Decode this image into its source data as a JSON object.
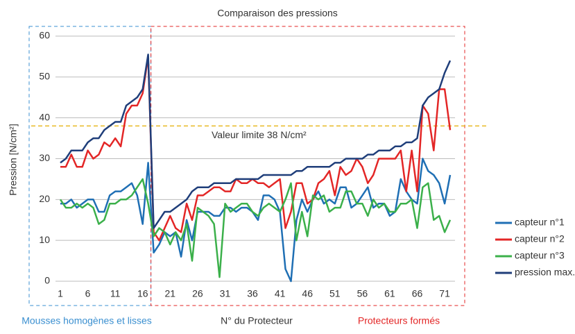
{
  "chart_data": {
    "type": "line",
    "title": "Comparaison des pressions",
    "y_label": "Pression [N/cm²]",
    "x_label": "N° du Protecteur",
    "x": [
      1,
      2,
      3,
      4,
      5,
      6,
      7,
      8,
      9,
      10,
      11,
      12,
      13,
      14,
      15,
      16,
      17,
      18,
      19,
      20,
      21,
      22,
      23,
      24,
      25,
      26,
      27,
      28,
      29,
      30,
      31,
      32,
      33,
      34,
      35,
      36,
      37,
      38,
      39,
      40,
      41,
      42,
      43,
      44,
      45,
      46,
      47,
      48,
      49,
      50,
      51,
      52,
      53,
      54,
      55,
      56,
      57,
      58,
      59,
      60,
      61,
      62,
      63,
      64,
      65,
      66,
      67,
      68,
      69,
      70,
      71,
      72
    ],
    "series": [
      {
        "name": "capteur n°1",
        "color": "#1f6fb4",
        "values": [
          19,
          19,
          20,
          18,
          19,
          20,
          20,
          17,
          17,
          21,
          22,
          22,
          23,
          24,
          21,
          14,
          29,
          7,
          9,
          12,
          11,
          12,
          6,
          15,
          10,
          17,
          17,
          17,
          16,
          16,
          18,
          18,
          17,
          18,
          18,
          17,
          15,
          21,
          21,
          20,
          17,
          3,
          0,
          15,
          20,
          17,
          20,
          22,
          19,
          20,
          19,
          23,
          23,
          18,
          19,
          21,
          23,
          18,
          19,
          19,
          16,
          17,
          25,
          22,
          20,
          19,
          30,
          27,
          26,
          24,
          19,
          26
        ]
      },
      {
        "name": "capteur n°2",
        "color": "#e32626",
        "values": [
          28,
          28,
          31,
          28,
          28,
          32,
          30,
          31,
          34,
          33,
          35,
          33,
          41,
          43,
          43,
          46,
          55,
          12,
          10,
          13,
          16,
          13,
          12,
          19,
          15,
          21,
          21,
          22,
          23,
          23,
          22,
          22,
          25,
          24,
          24,
          25,
          24,
          24,
          23,
          24,
          25,
          13,
          17,
          24,
          24,
          19,
          20,
          24,
          25,
          27,
          21,
          28,
          26,
          27,
          30,
          28,
          24,
          26,
          30,
          30,
          30,
          30,
          32,
          22,
          32,
          22,
          43,
          41,
          32,
          47,
          47,
          37
        ]
      },
      {
        "name": "capteur n°3",
        "color": "#3bb04a",
        "values": [
          20,
          18,
          18,
          19,
          18,
          19,
          18,
          14,
          15,
          19,
          19,
          20,
          20,
          21,
          23,
          25,
          19,
          11,
          13,
          12,
          9,
          12,
          10,
          14,
          5,
          18,
          17,
          16,
          14,
          1,
          19,
          17,
          18,
          19,
          19,
          17,
          16,
          18,
          19,
          18,
          17,
          20,
          24,
          10,
          17,
          11,
          21,
          20,
          21,
          17,
          18,
          18,
          22,
          22,
          19,
          19,
          16,
          20,
          18,
          19,
          17,
          17,
          19,
          19,
          20,
          13,
          23,
          24,
          15,
          16,
          12,
          15
        ]
      },
      {
        "name": "pression max.",
        "color": "#1f3e7a",
        "values": [
          29,
          30,
          32,
          32,
          32,
          34,
          35,
          35,
          37,
          38,
          39,
          39,
          43,
          44,
          45,
          47,
          55.5,
          13,
          15,
          17,
          17,
          18,
          19,
          20,
          22,
          23,
          23,
          23,
          24,
          24,
          24,
          24,
          25,
          25,
          25,
          25,
          25,
          26,
          26,
          26,
          26,
          26,
          26,
          27,
          27,
          28,
          28,
          28,
          28,
          28,
          29,
          29,
          30,
          30,
          30,
          30,
          31,
          31,
          32,
          32,
          32,
          33,
          33,
          34,
          34,
          35,
          43,
          45,
          46,
          47,
          51,
          54
        ]
      }
    ],
    "xlim": [
      1,
      72
    ],
    "xticks": [
      1,
      6,
      11,
      16,
      21,
      26,
      31,
      36,
      41,
      46,
      51,
      56,
      61,
      66,
      71
    ],
    "ylim": [
      0,
      60
    ],
    "yticks": [
      0,
      10,
      20,
      30,
      40,
      50,
      60
    ],
    "grid": true,
    "threshold": {
      "value": 38,
      "label": "Valeur limite 38 N/cm²",
      "color": "#e8b923"
    },
    "divider": 17.5,
    "regions": [
      {
        "label": "Mousses homogènes et lisses",
        "color": "#3a8fd0"
      },
      {
        "label": "Protecteurs formés",
        "color": "#e32626"
      }
    ],
    "legend": "right"
  }
}
